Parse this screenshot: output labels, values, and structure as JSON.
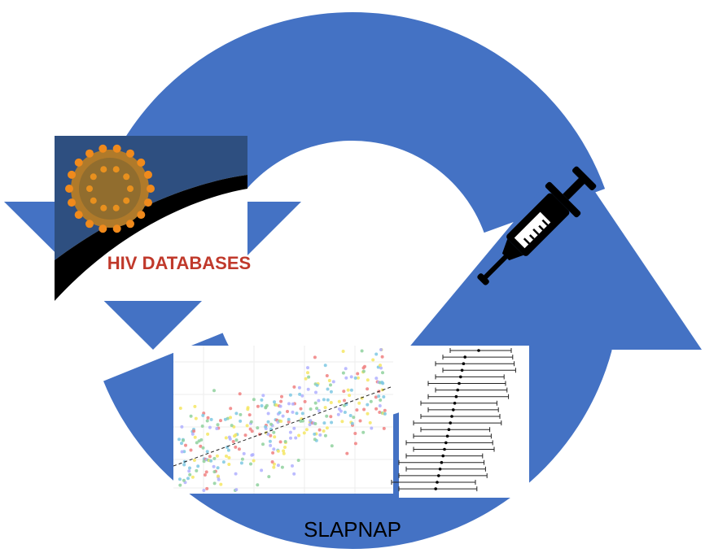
{
  "logo": {
    "label": "HIV DATABASES"
  },
  "caption": "SLAPNAP"
}
